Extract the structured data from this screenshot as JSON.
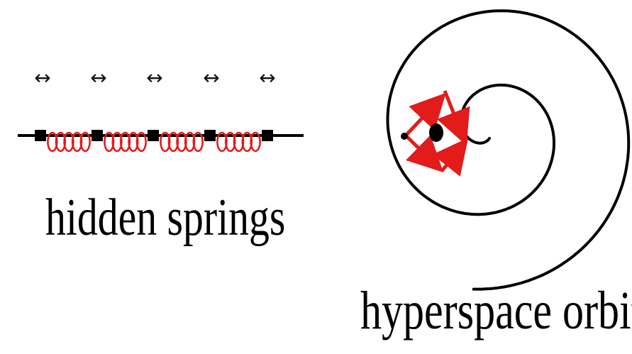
{
  "colors": {
    "line": "#000000",
    "spring": "#e31b1b",
    "vector": "#e31b1b",
    "background": "#ffffff"
  },
  "left_panel": {
    "motion_glyph": "↔",
    "motion_glyph_count": 5,
    "mass_count": 5,
    "spring_count": 4,
    "spring_coils_per_segment": 5,
    "caption": "hidden springs"
  },
  "right_panel": {
    "caption": "hyperspace orbit",
    "spiral_turns": 2.3,
    "vector_arrows": 4
  }
}
